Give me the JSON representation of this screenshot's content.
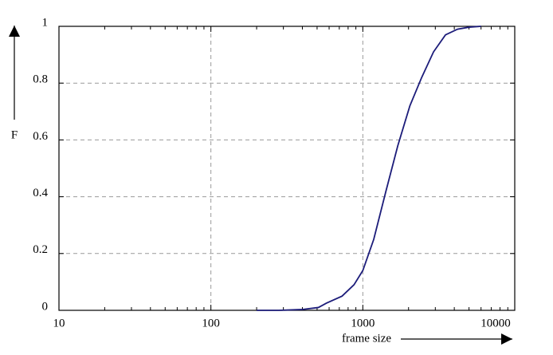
{
  "chart_data": {
    "type": "line",
    "x_label": "frame size",
    "y_label": "F",
    "x_log": true,
    "grid": true,
    "xlim": [
      10,
      10000
    ],
    "xticks": [
      10,
      100,
      1000,
      10000
    ],
    "ylim": [
      0,
      1
    ],
    "yticks": [
      0,
      0.2,
      0.4,
      0.6,
      0.8,
      1
    ],
    "series": [
      {
        "color": "#1c1c7a",
        "x": [
          200,
          280,
          400,
          510,
          575,
          730,
          875,
          1000,
          1180,
          1420,
          1700,
          2040,
          2440,
          2920,
          3500,
          4200,
          5000,
          6000
        ],
        "values": [
          0,
          0,
          0.003,
          0.01,
          0.025,
          0.05,
          0.09,
          0.14,
          0.25,
          0.42,
          0.58,
          0.72,
          0.82,
          0.91,
          0.97,
          0.99,
          0.997,
          1
        ]
      }
    ]
  }
}
